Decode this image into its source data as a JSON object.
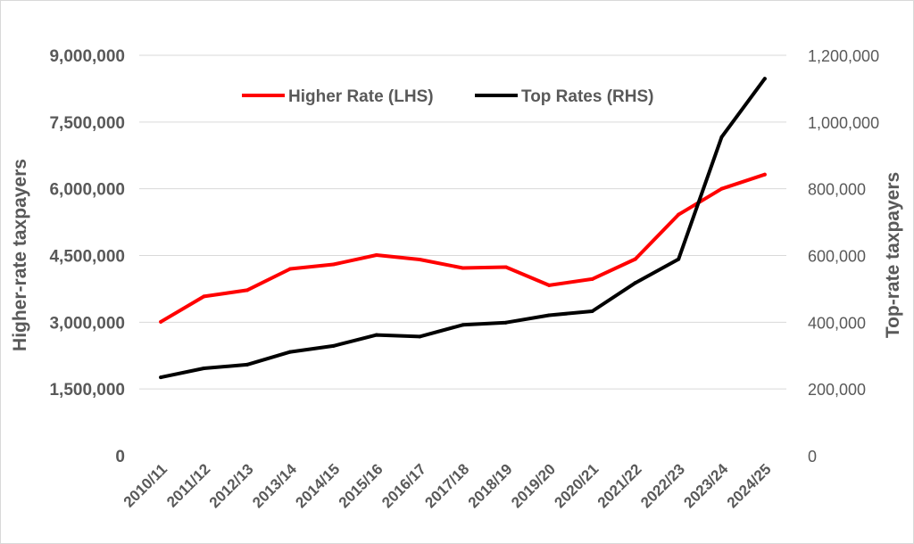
{
  "chart_data": {
    "type": "line",
    "categories": [
      "2010/11",
      "2011/12",
      "2012/13",
      "2013/14",
      "2014/15",
      "2015/16",
      "2016/17",
      "2017/18",
      "2018/19",
      "2019/20",
      "2020/21",
      "2021/22",
      "2022/23",
      "2023/24",
      "2024/25"
    ],
    "series": [
      {
        "name": "Higher Rate (LHS)",
        "axis": "left",
        "color": "#ff0000",
        "values": [
          3010000,
          3580000,
          3720000,
          4200000,
          4300000,
          4510000,
          4410000,
          4220000,
          4240000,
          3830000,
          3970000,
          4420000,
          5420000,
          6000000,
          6320000
        ]
      },
      {
        "name": "Top Rates (RHS)",
        "axis": "right",
        "color": "#000000",
        "values": [
          235000,
          262000,
          273000,
          311000,
          329000,
          362000,
          357000,
          392000,
          399000,
          421000,
          433000,
          518000,
          589000,
          955000,
          1130000
        ]
      }
    ],
    "ylabel_left": "Higher-rate taxpayers",
    "ylabel_right": "Top-rate taxpayers",
    "ylim_left": [
      0,
      9000000
    ],
    "ylim_right": [
      0,
      1200000
    ],
    "yticks_left": [
      "0",
      "1,500,000",
      "3,000,000",
      "4,500,000",
      "6,000,000",
      "7,500,000",
      "9,000,000"
    ],
    "yticks_right": [
      "0",
      "200,000",
      "400,000",
      "600,000",
      "800,000",
      "1,000,000",
      "1,200,000"
    ],
    "grid": true,
    "legend_position": "top-center"
  }
}
